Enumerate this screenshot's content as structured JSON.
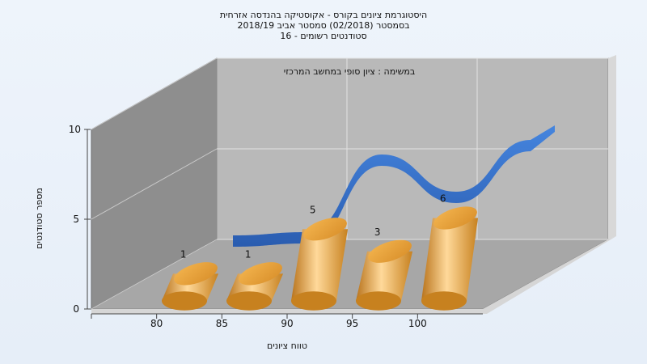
{
  "chart_data": {
    "type": "bar",
    "title_lines": [
      "היסטוגרמת ציונים בקורס - אקוסטיקה בהנדסה אזרחית",
      "בסמסטר  (02/2018)  סמסטר אביב 2018/19",
      "סטודנטים רשומים - 16"
    ],
    "annotation": "במשימה : ציון סופי במחשב המרכזי",
    "xlabel": "טווח ציונים",
    "ylabel": "מספר סטודנטים",
    "categories": [
      "80",
      "85",
      "90",
      "95",
      "100"
    ],
    "values": [
      1,
      1,
      5,
      3,
      6
    ],
    "curve_values": [
      2.5,
      2.7,
      7.5,
      5.2,
      8.4
    ],
    "y_ticks": [
      "0",
      "5",
      "10"
    ],
    "ylim": [
      0,
      10
    ],
    "grid": true,
    "colors": {
      "bar": "#e8a23c",
      "bar_light": "#ffd99a",
      "bar_dark": "#b9741c",
      "curve": "#2e6fcf",
      "back_wall": "#b9b9b9",
      "side_wall": "#8d8d8d",
      "floor": "#a7a7a7"
    }
  }
}
